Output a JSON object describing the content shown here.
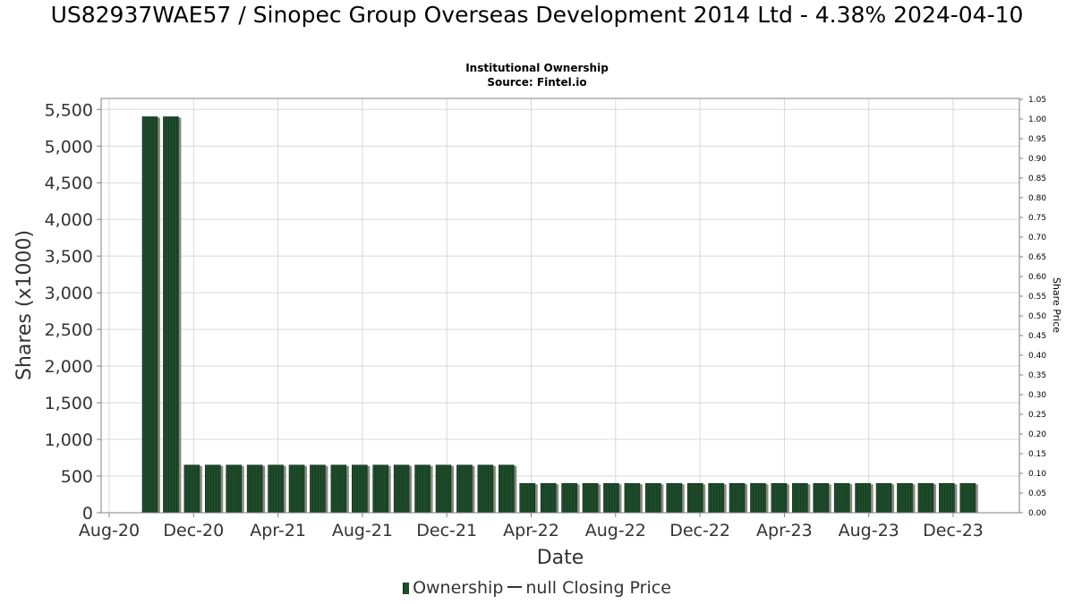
{
  "chart_data": {
    "type": "bar",
    "title": "US82937WAE57 / Sinopec Group Overseas Development 2014 Ltd - 4.38% 2024-04-10",
    "subtitle_lines": [
      "Institutional Ownership",
      "Source: Fintel.io"
    ],
    "xlabel": "Date",
    "ylabel": "Shares (x1000)",
    "y2label": "Share Price",
    "x_ticks": [
      "Aug-20",
      "Dec-20",
      "Apr-21",
      "Aug-21",
      "Dec-21",
      "Apr-22",
      "Aug-22",
      "Dec-22",
      "Apr-23",
      "Aug-23",
      "Dec-23"
    ],
    "y_ticks": [
      "0",
      "500",
      "1,000",
      "1,500",
      "2,000",
      "2,500",
      "3,000",
      "3,500",
      "4,000",
      "4,500",
      "5,000",
      "5,500"
    ],
    "y2_ticks": [
      "0.00",
      "0.05",
      "0.10",
      "0.15",
      "0.20",
      "0.25",
      "0.30",
      "0.35",
      "0.40",
      "0.45",
      "0.50",
      "0.55",
      "0.60",
      "0.65",
      "0.70",
      "0.75",
      "0.80",
      "0.85",
      "0.90",
      "0.95",
      "1.00",
      "1.05"
    ],
    "ylim": [
      0,
      5650
    ],
    "y2lim": [
      0,
      1.05
    ],
    "series": [
      {
        "name": "Ownership",
        "values": [
          5400,
          5400,
          650,
          650,
          650,
          650,
          650,
          650,
          650,
          650,
          650,
          650,
          650,
          650,
          650,
          650,
          650,
          650,
          400,
          400,
          400,
          400,
          400,
          400,
          400,
          400,
          400,
          400,
          400,
          400,
          400,
          400,
          400,
          400,
          400,
          400,
          400,
          400,
          400,
          400
        ]
      }
    ],
    "legend": [
      {
        "label": "Ownership"
      },
      {
        "label": "null Closing Price"
      }
    ],
    "legend_position": "bottom",
    "grid": true,
    "colors": {
      "bar": "#1e4d2b",
      "bar_shadow": "#8a8a82",
      "grid": "#d9d9d9",
      "axis": "#808080"
    }
  }
}
